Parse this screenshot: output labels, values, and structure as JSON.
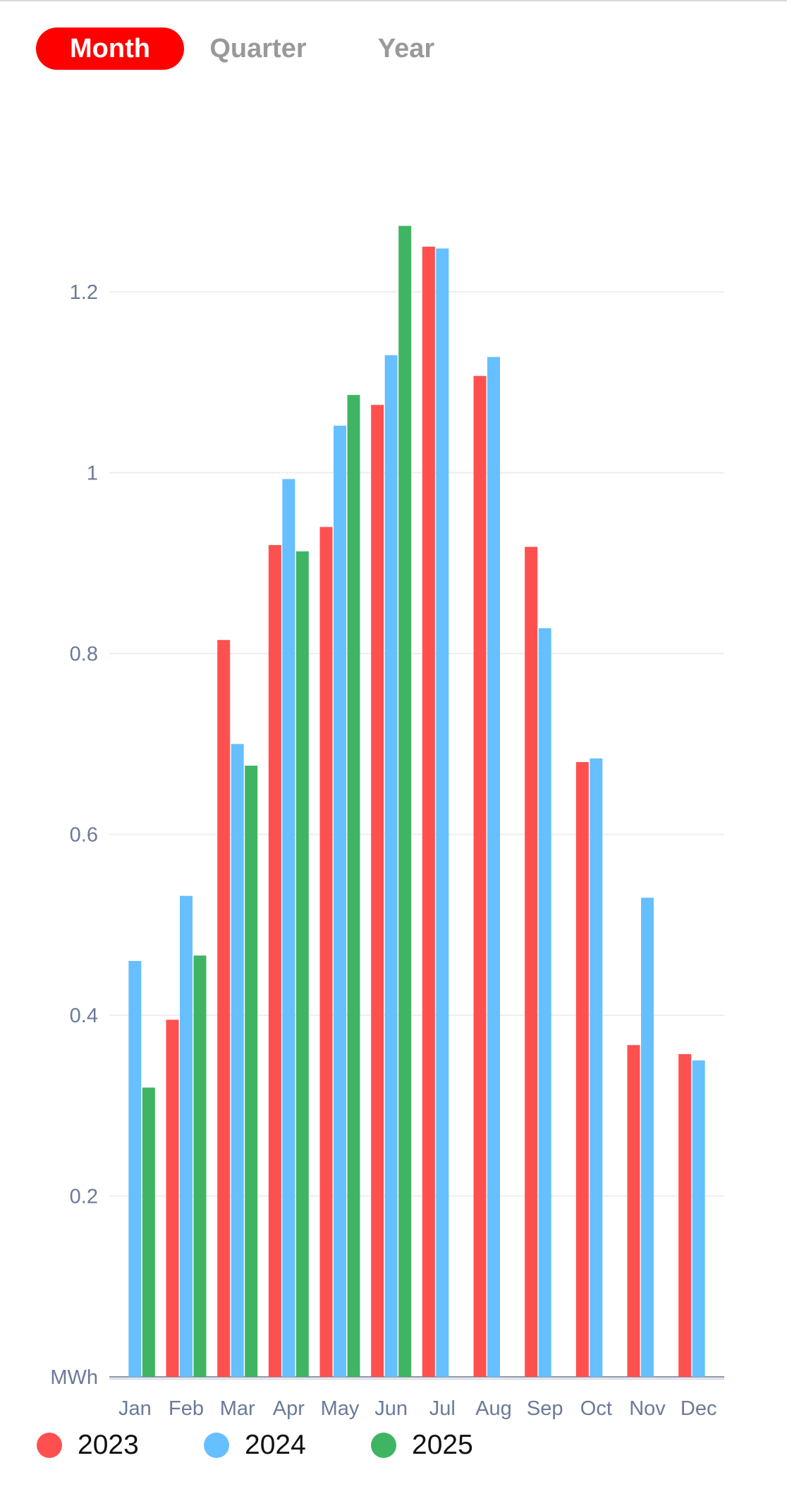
{
  "tabs": [
    {
      "label": "Month",
      "active": true
    },
    {
      "label": "Quarter",
      "active": false
    },
    {
      "label": "Year",
      "active": false
    }
  ],
  "colors": {
    "active_tab": "#ff0000",
    "series_2023": "#ff5050",
    "series_2024": "#66bfff",
    "series_2025": "#3fb564",
    "grid": "#eeeeee",
    "axis_text": "#6b7a99"
  },
  "chart_data": {
    "type": "bar",
    "categories": [
      "Jan",
      "Feb",
      "Mar",
      "Apr",
      "May",
      "Jun",
      "Jul",
      "Aug",
      "Sep",
      "Oct",
      "Nov",
      "Dec"
    ],
    "series": [
      {
        "name": "2023",
        "color": "#ff5050",
        "values": [
          null,
          0.395,
          0.815,
          0.92,
          0.94,
          1.075,
          1.25,
          1.107,
          0.918,
          0.68,
          0.367,
          0.357
        ]
      },
      {
        "name": "2024",
        "color": "#66bfff",
        "values": [
          0.46,
          0.532,
          0.7,
          0.993,
          1.052,
          1.13,
          1.248,
          1.128,
          0.828,
          0.684,
          0.53,
          0.35
        ]
      },
      {
        "name": "2025",
        "color": "#3fb564",
        "values": [
          0.32,
          0.466,
          0.676,
          0.913,
          1.086,
          1.273,
          null,
          null,
          null,
          null,
          null,
          null
        ]
      }
    ],
    "y_ticks": [
      "0.2",
      "0.4",
      "0.6",
      "0.8",
      "1",
      "1.2"
    ],
    "y_tick_values": [
      0.2,
      0.4,
      0.6,
      0.8,
      1.0,
      1.2
    ],
    "ylabel": "MWh",
    "ylim": [
      0,
      1.4
    ],
    "grid": true,
    "legend_position": "bottom"
  }
}
